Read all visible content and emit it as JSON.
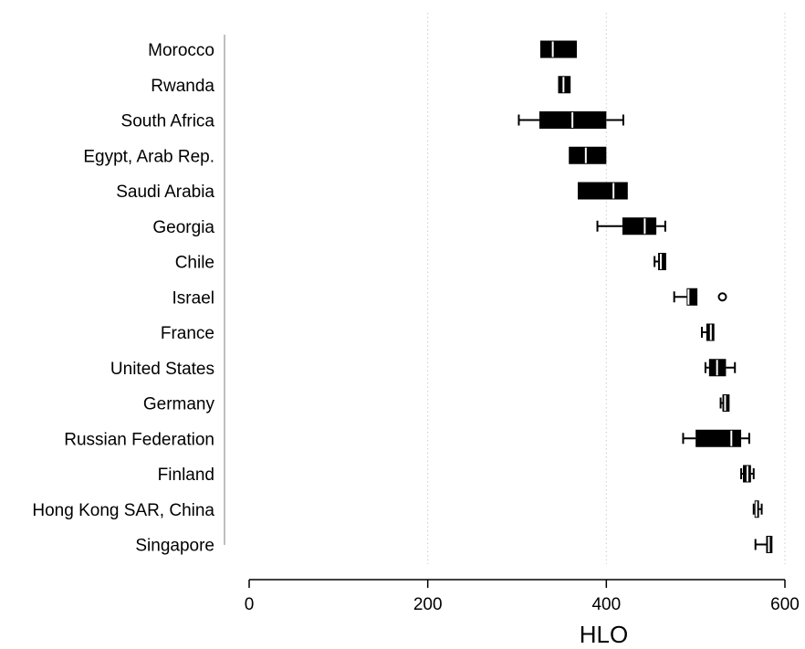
{
  "chart_data": {
    "type": "boxplot",
    "orientation": "horizontal",
    "xlabel": "HLO",
    "xlim": [
      0,
      600
    ],
    "xticks": [
      0,
      200,
      400,
      600
    ],
    "grid": "vertical dotted at x ticks",
    "colors": {
      "box": "#000000",
      "median": "#ffffff",
      "whisker": "#000000",
      "axis": "#000000",
      "category_axis": "#aaaaaa",
      "grid": "#cccccc"
    },
    "categories": [
      "Morocco",
      "Rwanda",
      "South Africa",
      "Egypt, Arab Rep.",
      "Saudi Arabia",
      "Georgia",
      "Chile",
      "Israel",
      "France",
      "United States",
      "Germany",
      "Russian Federation",
      "Finland",
      "Hong Kong SAR, China",
      "Singapore"
    ],
    "boxes": [
      {
        "category": "Morocco",
        "whisker_low": 326,
        "q1": 326,
        "median": 340,
        "q3": 367,
        "whisker_high": 367,
        "outliers": []
      },
      {
        "category": "Rwanda",
        "whisker_low": 346,
        "q1": 346,
        "median": 352,
        "q3": 360,
        "whisker_high": 360,
        "outliers": []
      },
      {
        "category": "South Africa",
        "whisker_low": 302,
        "q1": 325,
        "median": 362,
        "q3": 400,
        "whisker_high": 419,
        "outliers": []
      },
      {
        "category": "Egypt, Arab Rep.",
        "whisker_low": 358,
        "q1": 358,
        "median": 377,
        "q3": 400,
        "whisker_high": 400,
        "outliers": []
      },
      {
        "category": "Saudi Arabia",
        "whisker_low": 368,
        "q1": 368,
        "median": 408,
        "q3": 424,
        "whisker_high": 424,
        "outliers": []
      },
      {
        "category": "Georgia",
        "whisker_low": 390,
        "q1": 418,
        "median": 443,
        "q3": 456,
        "whisker_high": 466,
        "outliers": []
      },
      {
        "category": "Chile",
        "whisker_low": 454,
        "q1": 458,
        "median": 461,
        "q3": 467,
        "whisker_high": 467,
        "outliers": []
      },
      {
        "category": "Israel",
        "whisker_low": 476,
        "q1": 490,
        "median": 492,
        "q3": 502,
        "whisker_high": 502,
        "outliers": [
          530
        ]
      },
      {
        "category": "France",
        "whisker_low": 507,
        "q1": 512,
        "median": 517,
        "q3": 521,
        "whisker_high": 521,
        "outliers": []
      },
      {
        "category": "United States",
        "whisker_low": 511,
        "q1": 515,
        "median": 524,
        "q3": 534,
        "whisker_high": 544,
        "outliers": []
      },
      {
        "category": "Germany",
        "whisker_low": 528,
        "q1": 530,
        "median": 533,
        "q3": 538,
        "whisker_high": 538,
        "outliers": []
      },
      {
        "category": "Russian Federation",
        "whisker_low": 486,
        "q1": 500,
        "median": 540,
        "q3": 551,
        "whisker_high": 560,
        "outliers": []
      },
      {
        "category": "Finland",
        "whisker_low": 551,
        "q1": 553,
        "median": 558,
        "q3": 562,
        "whisker_high": 565,
        "outliers": []
      },
      {
        "category": "Hong Kong SAR, China",
        "whisker_low": 565,
        "q1": 566,
        "median": 568,
        "q3": 571,
        "whisker_high": 574,
        "outliers": []
      },
      {
        "category": "Singapore",
        "whisker_low": 567,
        "q1": 579,
        "median": 582,
        "q3": 586,
        "whisker_high": 586,
        "outliers": []
      }
    ]
  }
}
